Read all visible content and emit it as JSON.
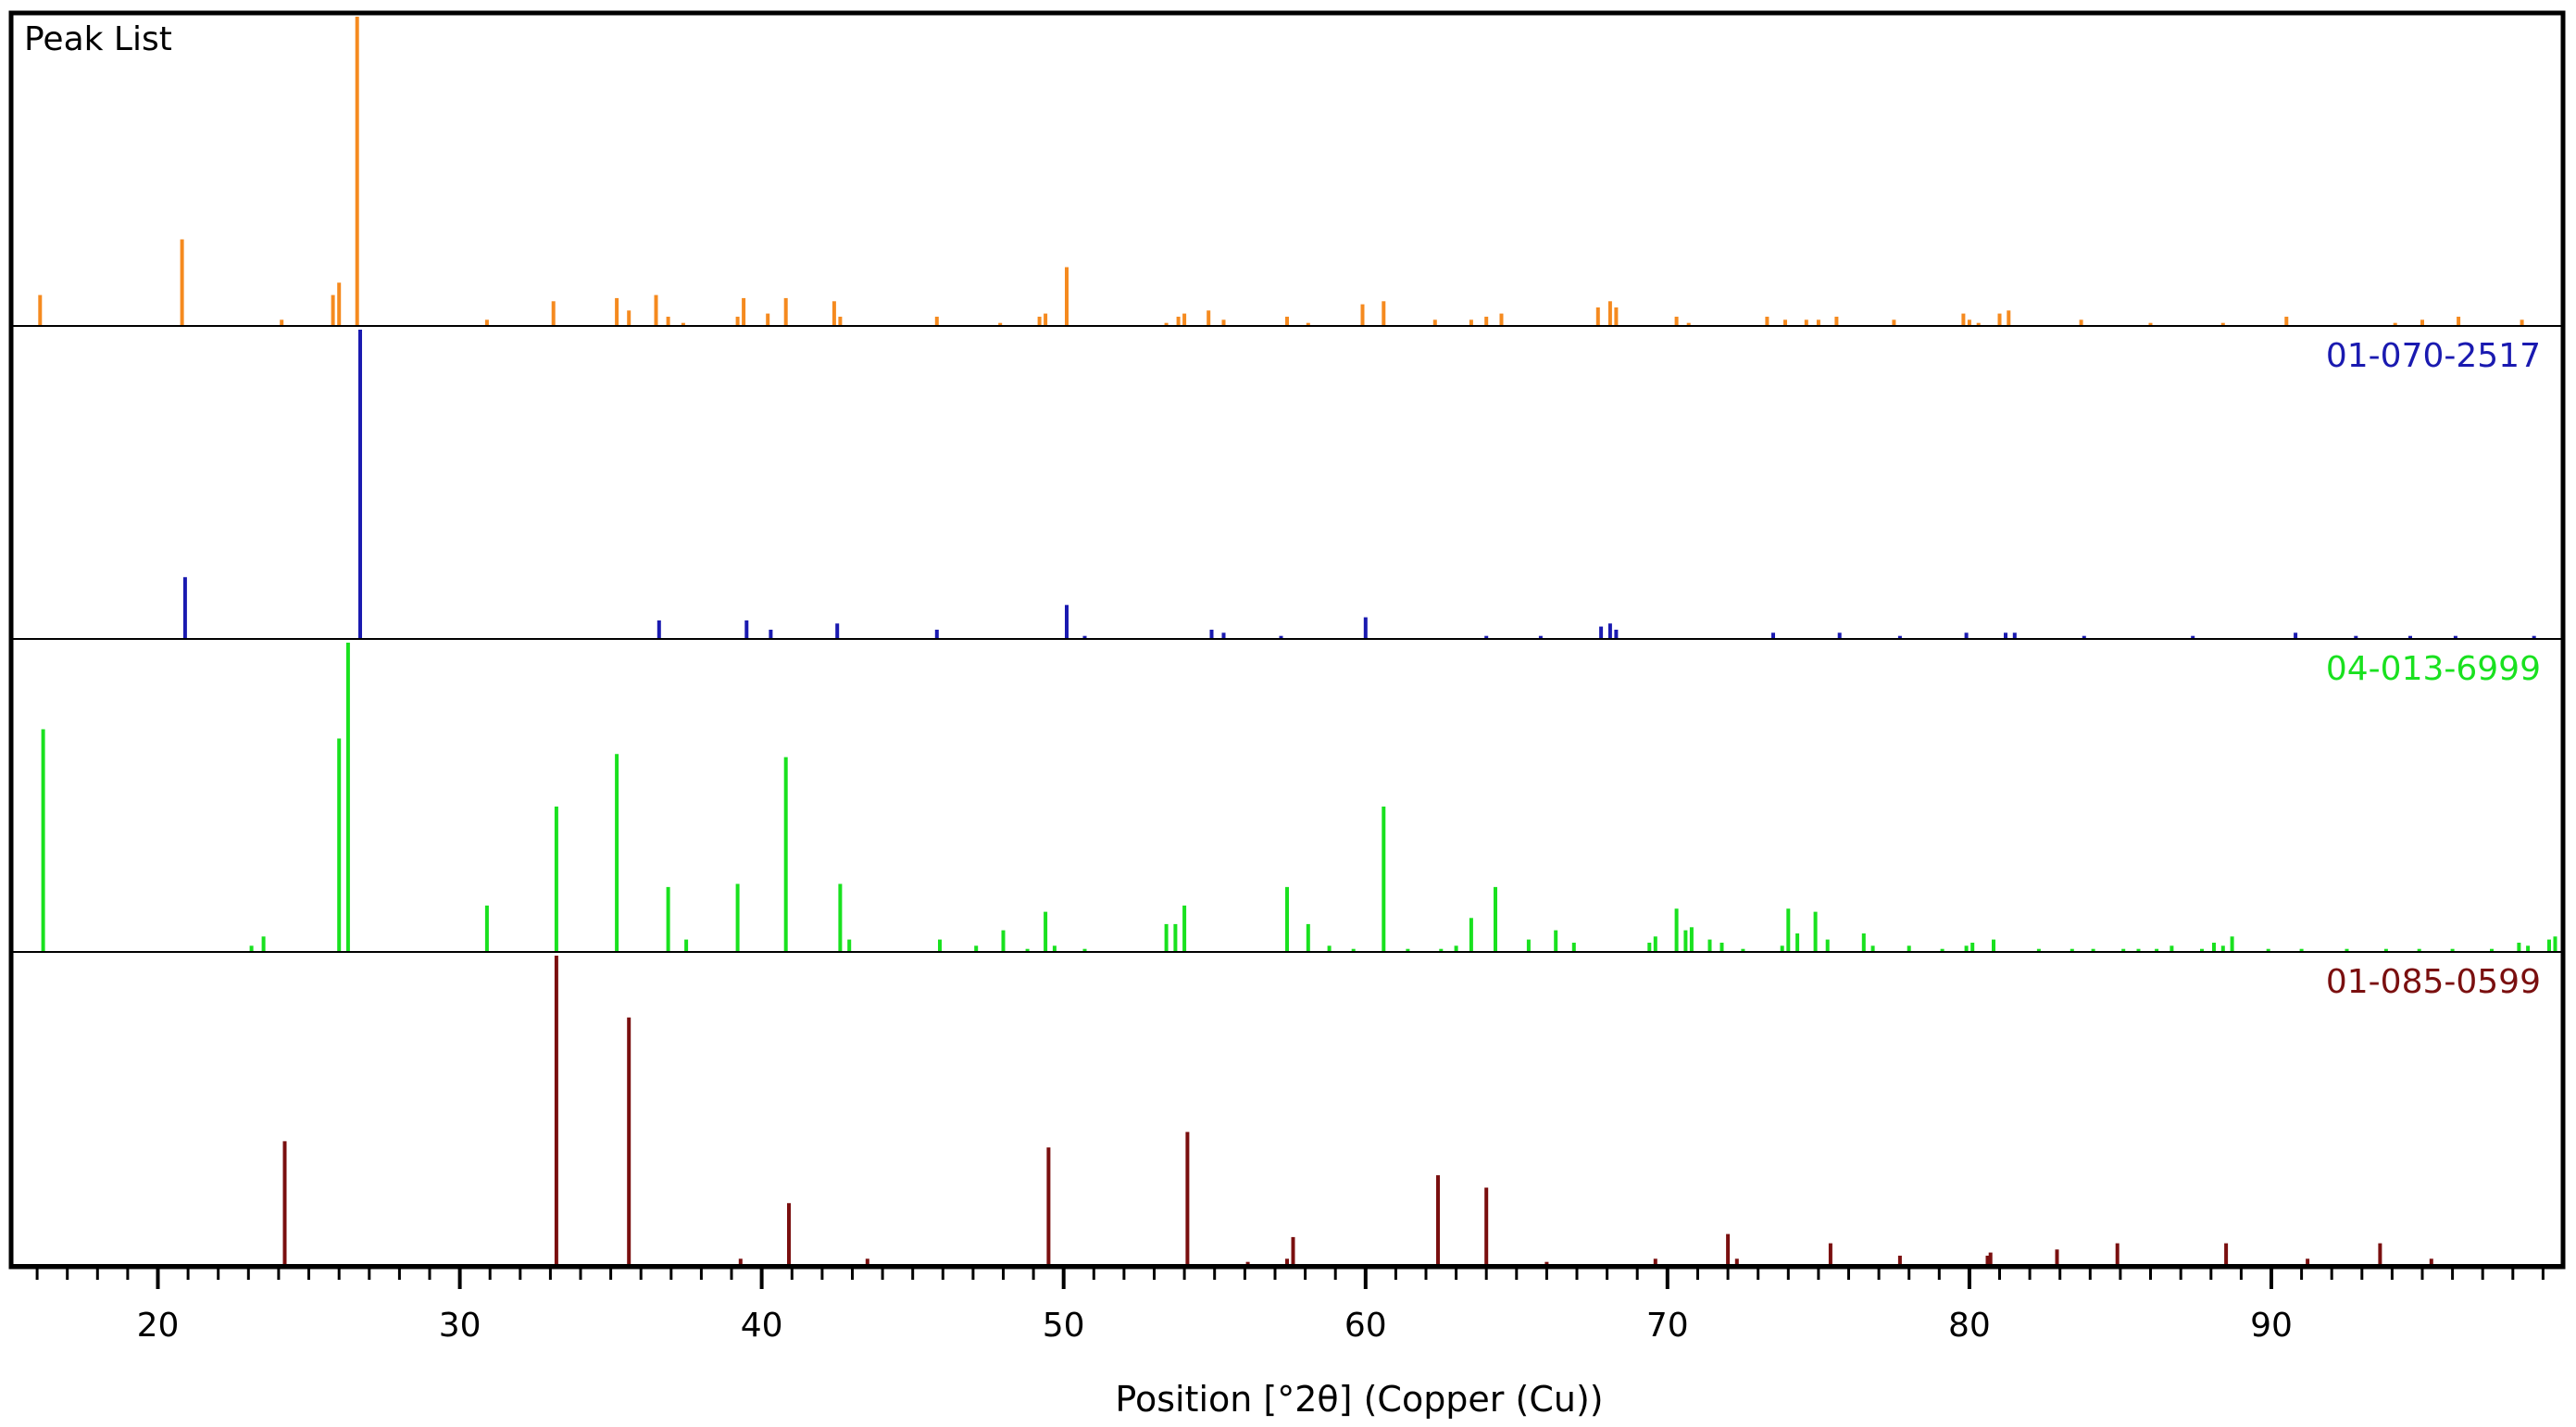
{
  "chart_data": {
    "type": "bar",
    "title": "Peak List",
    "xlabel": "Position [°2θ] (Copper (Cu))",
    "ylabel": "",
    "xlim": [
      15.2,
      99.6
    ],
    "x_ticks": [
      20,
      30,
      40,
      50,
      60,
      70,
      80,
      90
    ],
    "grid": false,
    "colors": {
      "peak_list": "#f58a1f",
      "ref_1": "#1a1ab0",
      "ref_2": "#19e11f",
      "ref_3": "#7a0f0f"
    },
    "series": [
      {
        "name": "Peak List",
        "color": "#f58a1f",
        "show_label": false,
        "peaks": [
          [
            16.1,
            10
          ],
          [
            20.8,
            28
          ],
          [
            24.1,
            2
          ],
          [
            25.8,
            10
          ],
          [
            26.0,
            14
          ],
          [
            26.6,
            100
          ],
          [
            30.9,
            2
          ],
          [
            33.1,
            8
          ],
          [
            35.2,
            9
          ],
          [
            35.6,
            5
          ],
          [
            36.5,
            10
          ],
          [
            36.9,
            3
          ],
          [
            37.4,
            1
          ],
          [
            39.2,
            3
          ],
          [
            39.4,
            9
          ],
          [
            40.2,
            4
          ],
          [
            40.8,
            9
          ],
          [
            42.4,
            8
          ],
          [
            42.6,
            3
          ],
          [
            45.8,
            3
          ],
          [
            47.9,
            1
          ],
          [
            49.2,
            3
          ],
          [
            49.4,
            4
          ],
          [
            50.1,
            19
          ],
          [
            53.4,
            1
          ],
          [
            53.8,
            3
          ],
          [
            54.0,
            4
          ],
          [
            54.8,
            5
          ],
          [
            55.3,
            2
          ],
          [
            57.4,
            3
          ],
          [
            58.1,
            1
          ],
          [
            59.9,
            7
          ],
          [
            60.6,
            8
          ],
          [
            62.3,
            2
          ],
          [
            63.5,
            2
          ],
          [
            64.0,
            3
          ],
          [
            64.5,
            4
          ],
          [
            67.7,
            6
          ],
          [
            68.1,
            8
          ],
          [
            68.3,
            6
          ],
          [
            70.3,
            3
          ],
          [
            70.7,
            1
          ],
          [
            73.3,
            3
          ],
          [
            73.9,
            2
          ],
          [
            74.6,
            2
          ],
          [
            75.0,
            2
          ],
          [
            75.6,
            3
          ],
          [
            77.5,
            2
          ],
          [
            79.8,
            4
          ],
          [
            80.0,
            2
          ],
          [
            80.3,
            1
          ],
          [
            81.0,
            4
          ],
          [
            81.3,
            5
          ],
          [
            83.7,
            2
          ],
          [
            86.0,
            1
          ],
          [
            88.4,
            1
          ],
          [
            90.5,
            3
          ],
          [
            94.1,
            1
          ],
          [
            95.0,
            2
          ],
          [
            96.2,
            3
          ],
          [
            98.3,
            2
          ]
        ]
      },
      {
        "name": "01-070-2517",
        "color": "#1a1ab0",
        "show_label": true,
        "peaks": [
          [
            20.9,
            20
          ],
          [
            26.7,
            100
          ],
          [
            36.6,
            6
          ],
          [
            39.5,
            6
          ],
          [
            40.3,
            3
          ],
          [
            42.5,
            5
          ],
          [
            45.8,
            3
          ],
          [
            50.1,
            11
          ],
          [
            50.7,
            1
          ],
          [
            54.9,
            3
          ],
          [
            55.3,
            2
          ],
          [
            57.2,
            1
          ],
          [
            60.0,
            7
          ],
          [
            64.0,
            1
          ],
          [
            65.8,
            1
          ],
          [
            67.8,
            4
          ],
          [
            68.1,
            5
          ],
          [
            68.3,
            3
          ],
          [
            73.5,
            2
          ],
          [
            75.7,
            2
          ],
          [
            77.7,
            1
          ],
          [
            79.9,
            2
          ],
          [
            81.2,
            2
          ],
          [
            81.5,
            2
          ],
          [
            83.8,
            1
          ],
          [
            87.4,
            1
          ],
          [
            90.8,
            2
          ],
          [
            92.8,
            1
          ],
          [
            94.6,
            1
          ],
          [
            96.1,
            1
          ],
          [
            98.7,
            1
          ]
        ]
      },
      {
        "name": "04-013-6999",
        "color": "#19e11f",
        "show_label": true,
        "peaks": [
          [
            16.2,
            72
          ],
          [
            23.1,
            2
          ],
          [
            23.5,
            5
          ],
          [
            26.0,
            69
          ],
          [
            26.3,
            100
          ],
          [
            30.9,
            15
          ],
          [
            33.2,
            47
          ],
          [
            35.2,
            64
          ],
          [
            36.9,
            21
          ],
          [
            37.5,
            4
          ],
          [
            39.2,
            22
          ],
          [
            40.8,
            63
          ],
          [
            42.6,
            22
          ],
          [
            42.9,
            4
          ],
          [
            45.9,
            4
          ],
          [
            47.1,
            2
          ],
          [
            48.0,
            7
          ],
          [
            48.8,
            1
          ],
          [
            49.4,
            13
          ],
          [
            49.7,
            2
          ],
          [
            50.7,
            1
          ],
          [
            53.4,
            9
          ],
          [
            53.7,
            9
          ],
          [
            54.0,
            15
          ],
          [
            57.4,
            21
          ],
          [
            58.1,
            9
          ],
          [
            58.8,
            2
          ],
          [
            59.6,
            1
          ],
          [
            60.6,
            47
          ],
          [
            61.4,
            1
          ],
          [
            62.5,
            1
          ],
          [
            63.0,
            2
          ],
          [
            63.5,
            11
          ],
          [
            64.3,
            21
          ],
          [
            65.4,
            4
          ],
          [
            66.3,
            7
          ],
          [
            66.9,
            3
          ],
          [
            69.4,
            3
          ],
          [
            69.6,
            5
          ],
          [
            70.3,
            14
          ],
          [
            70.6,
            7
          ],
          [
            70.8,
            8
          ],
          [
            71.4,
            4
          ],
          [
            71.8,
            3
          ],
          [
            72.5,
            1
          ],
          [
            73.8,
            2
          ],
          [
            74.0,
            14
          ],
          [
            74.3,
            6
          ],
          [
            74.9,
            13
          ],
          [
            75.3,
            4
          ],
          [
            76.5,
            6
          ],
          [
            76.8,
            2
          ],
          [
            78.0,
            2
          ],
          [
            79.1,
            1
          ],
          [
            79.9,
            2
          ],
          [
            80.1,
            3
          ],
          [
            80.8,
            4
          ],
          [
            82.3,
            1
          ],
          [
            83.4,
            1
          ],
          [
            84.1,
            1
          ],
          [
            85.1,
            1
          ],
          [
            85.6,
            1
          ],
          [
            86.2,
            1
          ],
          [
            86.7,
            2
          ],
          [
            87.7,
            1
          ],
          [
            88.1,
            3
          ],
          [
            88.4,
            2
          ],
          [
            88.7,
            5
          ],
          [
            89.9,
            1
          ],
          [
            91.0,
            1
          ],
          [
            92.5,
            1
          ],
          [
            93.8,
            1
          ],
          [
            94.9,
            1
          ],
          [
            96.0,
            1
          ],
          [
            97.3,
            1
          ],
          [
            98.2,
            3
          ],
          [
            98.5,
            2
          ],
          [
            99.2,
            4
          ],
          [
            99.4,
            5
          ]
        ]
      },
      {
        "name": "01-085-0599",
        "color": "#7a0f0f",
        "show_label": true,
        "peaks": [
          [
            24.2,
            40
          ],
          [
            33.2,
            100
          ],
          [
            35.6,
            80
          ],
          [
            39.3,
            2
          ],
          [
            40.9,
            20
          ],
          [
            43.5,
            2
          ],
          [
            49.5,
            38
          ],
          [
            54.1,
            43
          ],
          [
            56.1,
            1
          ],
          [
            57.4,
            2
          ],
          [
            57.6,
            9
          ],
          [
            62.4,
            29
          ],
          [
            64.0,
            25
          ],
          [
            66.0,
            1
          ],
          [
            69.6,
            2
          ],
          [
            72.0,
            10
          ],
          [
            72.3,
            2
          ],
          [
            75.4,
            7
          ],
          [
            77.7,
            3
          ],
          [
            80.6,
            3
          ],
          [
            80.7,
            4
          ],
          [
            82.9,
            5
          ],
          [
            84.9,
            7
          ],
          [
            88.5,
            7
          ],
          [
            91.2,
            2
          ],
          [
            93.6,
            7
          ],
          [
            95.3,
            2
          ]
        ]
      }
    ]
  }
}
